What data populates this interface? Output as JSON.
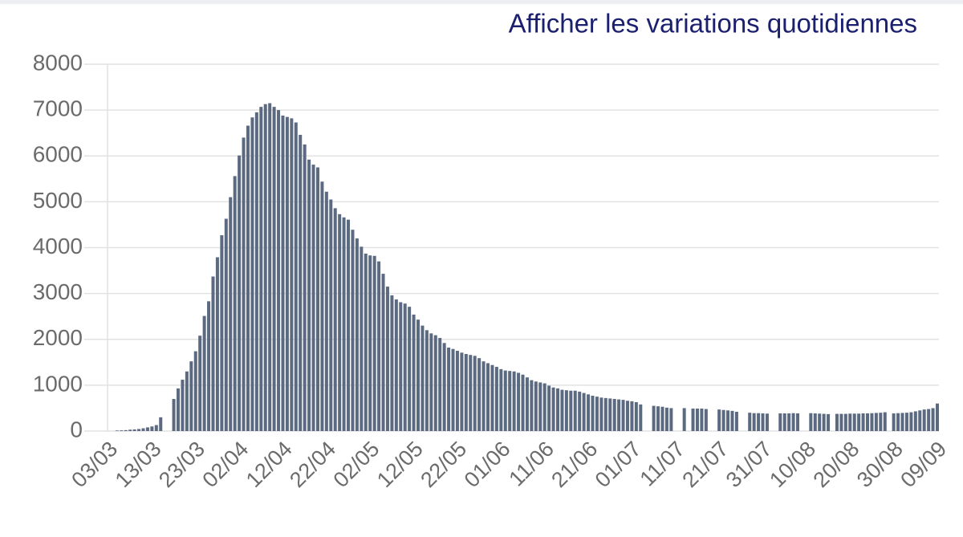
{
  "toggle": {
    "label": "Afficher les variations quotidiennes"
  },
  "chart_data": {
    "type": "bar",
    "color": "#5b6a80",
    "categories": [
      "03/03",
      null,
      null,
      null,
      null,
      null,
      null,
      null,
      null,
      null,
      "13/03",
      null,
      null,
      null,
      null,
      null,
      null,
      null,
      null,
      null,
      "23/03",
      null,
      null,
      null,
      null,
      null,
      null,
      null,
      null,
      null,
      "02/04",
      null,
      null,
      null,
      null,
      null,
      null,
      null,
      null,
      null,
      "12/04",
      null,
      null,
      null,
      null,
      null,
      null,
      null,
      null,
      null,
      "22/04",
      null,
      null,
      null,
      null,
      null,
      null,
      null,
      null,
      null,
      "02/05",
      null,
      null,
      null,
      null,
      null,
      null,
      null,
      null,
      null,
      "12/05",
      null,
      null,
      null,
      null,
      null,
      null,
      null,
      null,
      null,
      "22/05",
      null,
      null,
      null,
      null,
      null,
      null,
      null,
      null,
      null,
      "01/06",
      null,
      null,
      null,
      null,
      null,
      null,
      null,
      null,
      null,
      "11/06",
      null,
      null,
      null,
      null,
      null,
      null,
      null,
      null,
      null,
      "21/06",
      null,
      null,
      null,
      null,
      null,
      null,
      null,
      null,
      null,
      "01/07",
      null,
      null,
      null,
      null,
      null,
      null,
      null,
      null,
      null,
      "11/07",
      null,
      null,
      null,
      null,
      null,
      null,
      null,
      null,
      null,
      "21/07",
      null,
      null,
      null,
      null,
      null,
      null,
      null,
      null,
      null,
      "31/07",
      null,
      null,
      null,
      null,
      null,
      null,
      null,
      null,
      null,
      "10/08",
      null,
      null,
      null,
      null,
      null,
      null,
      null,
      null,
      null,
      "20/08",
      null,
      null,
      null,
      null,
      null,
      null,
      null,
      null,
      null,
      "30/08",
      null,
      null,
      null,
      null,
      null,
      null,
      null,
      null,
      null,
      "09/09"
    ],
    "values": [
      0,
      0,
      12,
      15,
      20,
      30,
      35,
      45,
      60,
      80,
      100,
      130,
      300,
      null,
      null,
      700,
      930,
      1120,
      1300,
      1520,
      1740,
      2080,
      2510,
      2830,
      3370,
      3790,
      4270,
      4630,
      5100,
      5560,
      6010,
      6400,
      6660,
      6840,
      6950,
      7070,
      7130,
      7150,
      7070,
      7000,
      6880,
      6850,
      6820,
      6730,
      6460,
      6250,
      5920,
      5810,
      5750,
      5440,
      5220,
      5050,
      4860,
      4730,
      4660,
      4610,
      4390,
      4200,
      4020,
      3870,
      3830,
      3820,
      3700,
      3430,
      3150,
      2960,
      2870,
      2810,
      2780,
      2710,
      2540,
      2430,
      2300,
      2200,
      2130,
      2090,
      2030,
      1920,
      1820,
      1790,
      1750,
      1710,
      1680,
      1660,
      1640,
      1590,
      1520,
      1480,
      1440,
      1400,
      1350,
      1320,
      1310,
      1300,
      1270,
      1230,
      1170,
      1110,
      1080,
      1060,
      1040,
      990,
      950,
      930,
      900,
      890,
      880,
      880,
      860,
      830,
      800,
      770,
      750,
      730,
      720,
      710,
      700,
      690,
      680,
      660,
      650,
      630,
      580,
      null,
      null,
      550,
      540,
      530,
      510,
      500,
      null,
      null,
      500,
      null,
      490,
      490,
      490,
      480,
      null,
      null,
      470,
      460,
      450,
      440,
      420,
      null,
      null,
      400,
      390,
      390,
      385,
      380,
      null,
      null,
      385,
      385,
      385,
      390,
      385,
      null,
      null,
      390,
      385,
      380,
      375,
      370,
      null,
      375,
      375,
      375,
      380,
      380,
      380,
      385,
      385,
      390,
      395,
      400,
      410,
      null,
      385,
      390,
      395,
      400,
      410,
      430,
      450,
      470,
      480,
      500,
      600
    ],
    "ylim": [
      0,
      8000
    ],
    "yticks": [
      0,
      1000,
      2000,
      3000,
      4000,
      5000,
      6000,
      7000,
      8000
    ],
    "grid": true
  }
}
